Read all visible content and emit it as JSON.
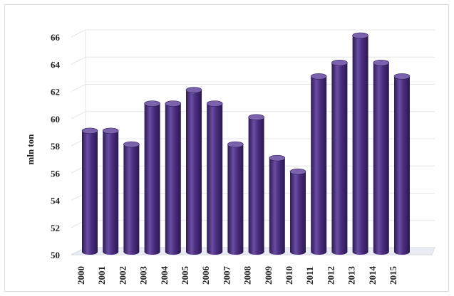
{
  "chart_data": {
    "type": "bar",
    "style": "3d-cylinder",
    "title": "",
    "xlabel": "",
    "ylabel": "mln ton",
    "categories": [
      "2000",
      "2001",
      "2002",
      "2003",
      "2004",
      "2005",
      "2006",
      "2007",
      "2008",
      "2009",
      "2010",
      "2011",
      "2012",
      "2013",
      "2014",
      "2015"
    ],
    "series": [
      {
        "values": [
          59,
          59,
          58,
          61,
          61,
          62,
          61,
          58,
          60,
          57,
          56,
          63,
          64,
          66,
          64,
          63
        ]
      }
    ],
    "ylim": [
      50,
      66
    ],
    "yticks": [
      50,
      52,
      54,
      56,
      58,
      60,
      62,
      64,
      66
    ],
    "grid": true,
    "legend": "none",
    "colors": {
      "bar": "#4b2d7f",
      "bar_dark": "#2e1a55",
      "bar_light": "#6a4ea3",
      "bar_top": "#7a62ad",
      "grid": "#e6e6e6",
      "floor": "#e9ecf2"
    }
  }
}
